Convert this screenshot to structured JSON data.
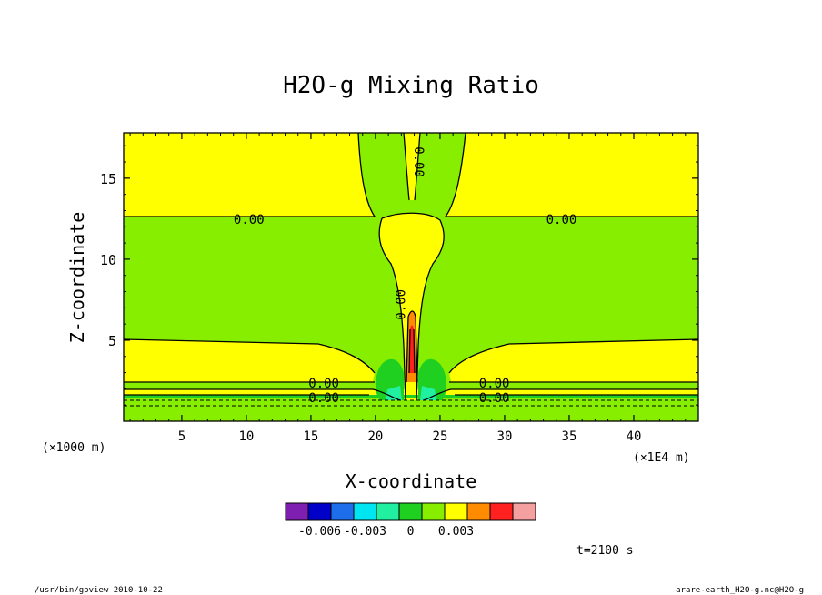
{
  "chart_data": {
    "type": "contour",
    "title": "H2O-g Mixing Ratio",
    "xlabel": "X-coordinate",
    "ylabel": "Z-coordinate",
    "x_unit_left": "(×1000 m)",
    "x_unit_right": "(×1E4 m)",
    "xlim": [
      0.5,
      45
    ],
    "ylim": [
      0,
      17.8
    ],
    "xticks": [
      5,
      10,
      15,
      20,
      25,
      30,
      35,
      40
    ],
    "xtick_labels": [
      "5",
      "10",
      "15",
      "20",
      "25",
      "30",
      "35",
      "40"
    ],
    "yticks": [
      5,
      10,
      15
    ],
    "ytick_labels": [
      "5",
      "10",
      "15"
    ],
    "contour_labels": [
      {
        "text": "0.00",
        "x": 10.2,
        "z": 12.4,
        "rotate": 0
      },
      {
        "text": "0.00",
        "x": 34.4,
        "z": 12.4,
        "rotate": 0
      },
      {
        "text": "0.00",
        "x": 23.3,
        "z": 16.0,
        "rotate": 90
      },
      {
        "text": "0.00",
        "x": 22.0,
        "z": 7.2,
        "rotate": -90
      },
      {
        "text": "0.00",
        "x": 16.0,
        "z": 2.3,
        "rotate": 0
      },
      {
        "text": "0.00",
        "x": 16.0,
        "z": 1.4,
        "rotate": 0
      },
      {
        "text": "0.00",
        "x": 29.2,
        "z": 2.3,
        "rotate": 0
      },
      {
        "text": "0.00",
        "x": 29.2,
        "z": 1.4,
        "rotate": 0
      }
    ],
    "colorbar": {
      "colors": [
        "#7f1fb2",
        "#0000c8",
        "#1e6eeb",
        "#00e5f2",
        "#20f0a0",
        "#20d020",
        "#88ee00",
        "#ffff00",
        "#ff8c00",
        "#ff2020",
        "#f4a0a0"
      ],
      "tick_labels": [
        "-0.006",
        "-0.003",
        "0",
        "0.003"
      ],
      "tick_boundaries": [
        1,
        3,
        5,
        7
      ]
    },
    "time_label": "t=2100 s",
    "footer_left": "/usr/bin/gpview   2010-10-22",
    "footer_right": "arare-earth_H2O-g.nc@H2O-g"
  }
}
